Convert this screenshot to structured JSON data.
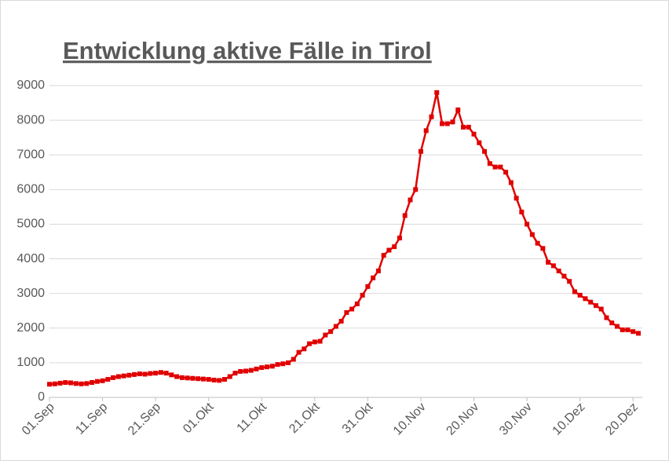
{
  "chart_data": {
    "type": "line",
    "title": "Entwicklung aktive Fälle in Tirol",
    "categories": [
      "01.Sep",
      null,
      null,
      null,
      null,
      null,
      null,
      null,
      null,
      null,
      "11.Sep",
      null,
      null,
      null,
      null,
      null,
      null,
      null,
      null,
      null,
      "21.Sep",
      null,
      null,
      null,
      null,
      null,
      null,
      null,
      null,
      null,
      "01.Okt",
      null,
      null,
      null,
      null,
      null,
      null,
      null,
      null,
      null,
      "11.Okt",
      null,
      null,
      null,
      null,
      null,
      null,
      null,
      null,
      null,
      "21.Okt",
      null,
      null,
      null,
      null,
      null,
      null,
      null,
      null,
      null,
      "31.Okt",
      null,
      null,
      null,
      null,
      null,
      null,
      null,
      null,
      null,
      "10.Nov",
      null,
      null,
      null,
      null,
      null,
      null,
      null,
      null,
      null,
      "20.Nov",
      null,
      null,
      null,
      null,
      null,
      null,
      null,
      null,
      null,
      "30.Nov",
      null,
      null,
      null,
      null,
      null,
      null,
      null,
      null,
      null,
      "10.Dez",
      null,
      null,
      null,
      null,
      null,
      null,
      null,
      null,
      null,
      "20.Dez",
      null
    ],
    "series": [
      {
        "name": "aktive Fälle",
        "color": "#e00000",
        "values": [
          380,
          390,
          410,
          430,
          420,
          400,
          390,
          400,
          430,
          460,
          480,
          520,
          570,
          600,
          620,
          640,
          660,
          680,
          670,
          690,
          700,
          720,
          700,
          650,
          600,
          570,
          560,
          550,
          540,
          530,
          520,
          500,
          490,
          520,
          600,
          700,
          750,
          760,
          780,
          820,
          860,
          880,
          900,
          950,
          970,
          1000,
          1100,
          1300,
          1400,
          1550,
          1600,
          1620,
          1800,
          1900,
          2050,
          2200,
          2450,
          2550,
          2700,
          2950,
          3200,
          3450,
          3650,
          4100,
          4250,
          4350,
          4600,
          5250,
          5700,
          6000,
          7100,
          7700,
          8100,
          8800,
          7900,
          7900,
          7950,
          8300,
          7800,
          7800,
          7600,
          7350,
          7100,
          6750,
          6650,
          6650,
          6500,
          6200,
          5750,
          5350,
          5000,
          4700,
          4450,
          4300,
          3900,
          3800,
          3650,
          3500,
          3350,
          3050,
          2950,
          2850,
          2750,
          2650,
          2550,
          2300,
          2150,
          2050,
          1950,
          1950,
          1900,
          1850
        ]
      }
    ],
    "ylim": [
      0,
      9000
    ],
    "yticks": [
      0,
      1000,
      2000,
      3000,
      4000,
      5000,
      6000,
      7000,
      8000,
      9000
    ],
    "grid": true
  }
}
